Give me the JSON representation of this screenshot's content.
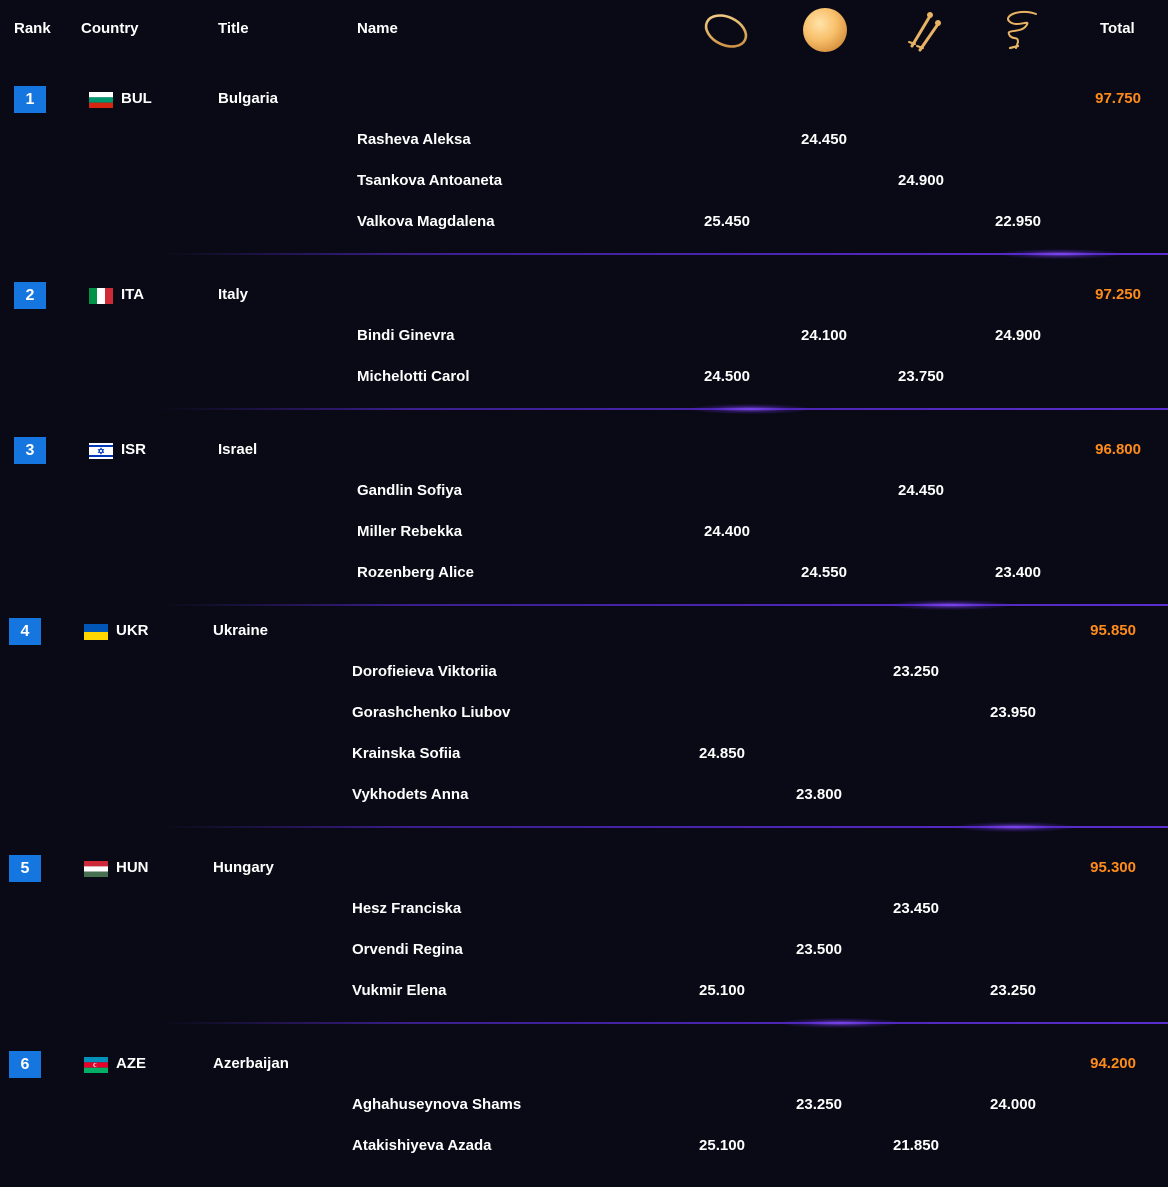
{
  "header": {
    "rank": "Rank",
    "country": "Country",
    "title": "Title",
    "name": "Name",
    "apparatus_icons": [
      "hoop-icon",
      "ball-icon",
      "clubs-icon",
      "ribbon-icon"
    ],
    "total": "Total"
  },
  "colors": {
    "background": "#0a0a16",
    "rank_badge": "#1676e0",
    "total": "#ff8c1a",
    "separator": "#4b25b3",
    "apparatus_gold": "#e8b464"
  },
  "teams": [
    {
      "rank": "1",
      "code": "BUL",
      "title": "Bulgaria",
      "total": "97.750",
      "flag": "bulgaria",
      "athletes": [
        {
          "name": "Rasheva Aleksa",
          "hoop": "",
          "ball": "24.450",
          "clubs": "",
          "ribbon": ""
        },
        {
          "name": "Tsankova Antoaneta",
          "hoop": "",
          "ball": "",
          "clubs": "24.900",
          "ribbon": ""
        },
        {
          "name": "Valkova Magdalena",
          "hoop": "25.450",
          "ball": "",
          "clubs": "",
          "ribbon": "22.950"
        }
      ]
    },
    {
      "rank": "2",
      "code": "ITA",
      "title": "Italy",
      "total": "97.250",
      "flag": "italy",
      "athletes": [
        {
          "name": "Bindi Ginevra",
          "hoop": "",
          "ball": "24.100",
          "clubs": "",
          "ribbon": "24.900"
        },
        {
          "name": "Michelotti Carol",
          "hoop": "24.500",
          "ball": "",
          "clubs": "23.750",
          "ribbon": ""
        }
      ]
    },
    {
      "rank": "3",
      "code": "ISR",
      "title": "Israel",
      "total": "96.800",
      "flag": "israel",
      "athletes": [
        {
          "name": "Gandlin Sofiya",
          "hoop": "",
          "ball": "",
          "clubs": "24.450",
          "ribbon": ""
        },
        {
          "name": "Miller Rebekka",
          "hoop": "24.400",
          "ball": "",
          "clubs": "",
          "ribbon": ""
        },
        {
          "name": "Rozenberg Alice",
          "hoop": "",
          "ball": "24.550",
          "clubs": "",
          "ribbon": "23.400"
        }
      ]
    },
    {
      "rank": "4",
      "code": "UKR",
      "title": "Ukraine",
      "total": "95.850",
      "flag": "ukraine",
      "athletes": [
        {
          "name": "Dorofieieva Viktoriia",
          "hoop": "",
          "ball": "",
          "clubs": "23.250",
          "ribbon": ""
        },
        {
          "name": "Gorashchenko Liubov",
          "hoop": "",
          "ball": "",
          "clubs": "",
          "ribbon": "23.950"
        },
        {
          "name": "Krainska Sofiia",
          "hoop": "24.850",
          "ball": "",
          "clubs": "",
          "ribbon": ""
        },
        {
          "name": "Vykhodets Anna",
          "hoop": "",
          "ball": "23.800",
          "clubs": "",
          "ribbon": ""
        }
      ]
    },
    {
      "rank": "5",
      "code": "HUN",
      "title": "Hungary",
      "total": "95.300",
      "flag": "hungary",
      "athletes": [
        {
          "name": "Hesz Franciska",
          "hoop": "",
          "ball": "",
          "clubs": "23.450",
          "ribbon": ""
        },
        {
          "name": "Orvendi Regina",
          "hoop": "",
          "ball": "23.500",
          "clubs": "",
          "ribbon": ""
        },
        {
          "name": "Vukmir Elena",
          "hoop": "25.100",
          "ball": "",
          "clubs": "",
          "ribbon": "23.250"
        }
      ]
    },
    {
      "rank": "6",
      "code": "AZE",
      "title": "Azerbaijan",
      "total": "94.200",
      "flag": "azerbaijan",
      "athletes": [
        {
          "name": "Aghahuseynova Shams",
          "hoop": "",
          "ball": "23.250",
          "clubs": "",
          "ribbon": "24.000"
        },
        {
          "name": "Atakishiyeva Azada",
          "hoop": "25.100",
          "ball": "",
          "clubs": "21.850",
          "ribbon": ""
        }
      ]
    }
  ]
}
